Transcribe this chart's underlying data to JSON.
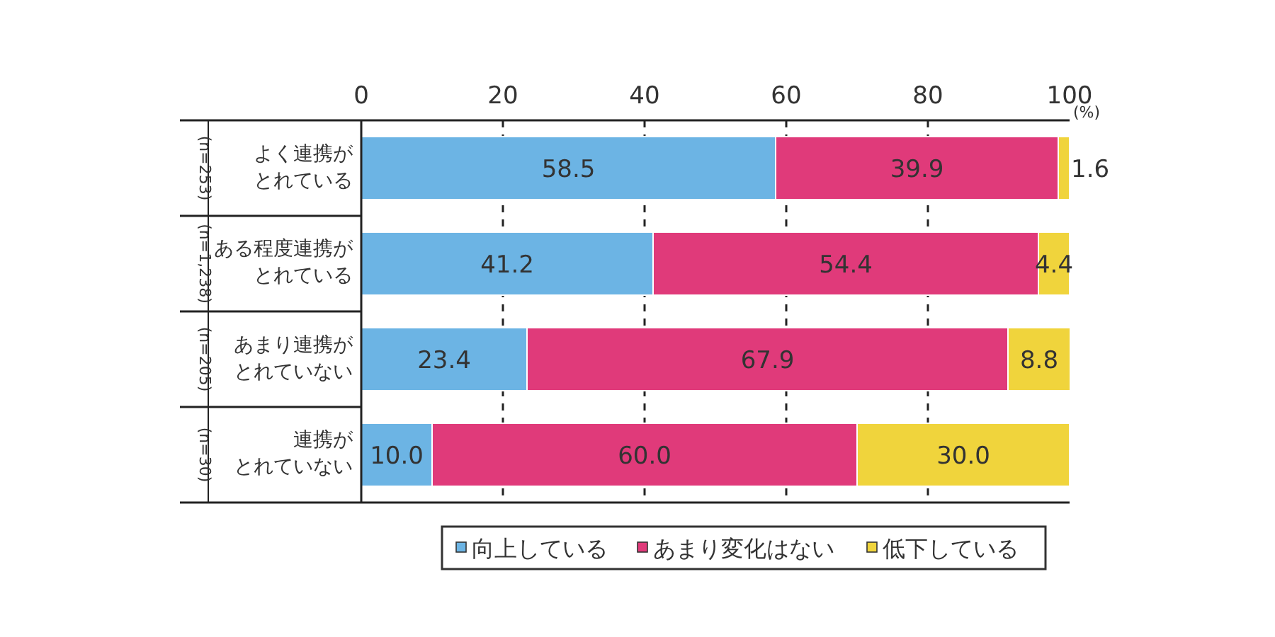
{
  "chart_data": {
    "type": "bar",
    "orientation": "horizontal",
    "stacked": true,
    "categories": [
      "よく連携がとれている",
      "ある程度連携がとれている",
      "あまり連携がとれていない",
      "連携がとれていない"
    ],
    "series": [
      {
        "name": "向上している",
        "color": "#6cb4e4",
        "values": [
          58.5,
          41.2,
          23.4,
          10.0
        ],
        "value_labels": [
          "58.5",
          "41.2",
          "23.4",
          "10.0"
        ]
      },
      {
        "name": "あまり変化はない",
        "color": "#e03a7a",
        "values": [
          39.9,
          54.4,
          67.9,
          60.0
        ],
        "value_labels": [
          "39.9",
          "54.4",
          "67.9",
          "60.0"
        ]
      },
      {
        "name": "低下している",
        "color": "#f0d43c",
        "values": [
          1.6,
          4.4,
          8.8,
          30.0
        ],
        "value_labels": [
          "1.6",
          "4.4",
          "8.8",
          "30.0"
        ]
      }
    ],
    "xlim": [
      0,
      100
    ],
    "xticks": [
      0,
      20,
      40,
      60,
      80,
      100
    ],
    "grid": "x",
    "legend": "bottom",
    "annotations": [
      "(n=253)",
      "(n=1,238)",
      "(n=205)",
      "(n=30)",
      "(%)"
    ]
  }
}
